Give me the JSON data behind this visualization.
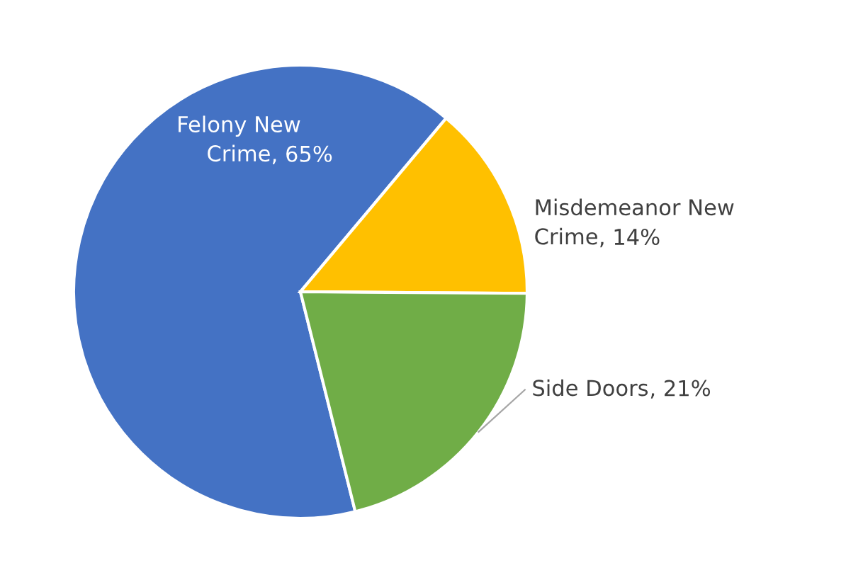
{
  "chart_data": {
    "type": "pie",
    "categories": [
      "Felony New Crime",
      "Misdemeanor New Crime",
      "Side Doors"
    ],
    "values": [
      65,
      14,
      21
    ],
    "value_labels": [
      ", 65%",
      ", 14%",
      ", 21%"
    ],
    "colors": [
      "#4472c4",
      "#ffc000",
      "#70ad47"
    ],
    "legend": false
  }
}
